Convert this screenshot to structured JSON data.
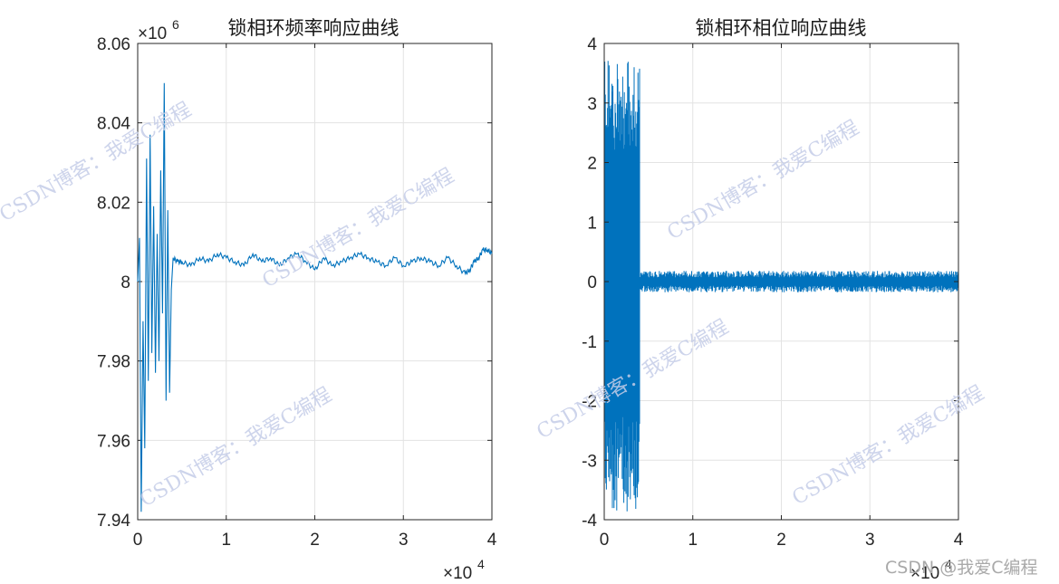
{
  "chart_data": [
    {
      "type": "line",
      "title": "锁相环频率响应曲线",
      "xlabel": "",
      "ylabel": "",
      "xlim": [
        0,
        40000
      ],
      "ylim": [
        7.94,
        8.06
      ],
      "x_ticks": [
        "0",
        "1",
        "2",
        "3",
        "4"
      ],
      "x_multiplier": "×10",
      "x_multiplier_exp": "4",
      "y_ticks": [
        "7.94",
        "7.96",
        "7.98",
        "8",
        "8.02",
        "8.04",
        "8.06"
      ],
      "y_multiplier": "×10",
      "y_multiplier_exp": "6",
      "grid": true,
      "line_color": "#0072BD",
      "series": [
        {
          "x": [
            0,
            200,
            400,
            600,
            800,
            1000,
            1200,
            1400,
            1600,
            1800,
            2000,
            2200,
            2400,
            2600,
            2800,
            3000,
            3200,
            3400,
            3600,
            3800,
            4000,
            4500,
            5000,
            6000,
            7000,
            8000,
            9000,
            10000,
            11000,
            12000,
            13000,
            14000,
            15000,
            16000,
            17000,
            18000,
            19000,
            20000,
            21000,
            22000,
            23000,
            24000,
            25000,
            26000,
            27000,
            28000,
            29000,
            30000,
            31000,
            32000,
            33000,
            34000,
            35000,
            36000,
            37000,
            37500,
            38000,
            38500,
            39000,
            39500,
            40000
          ],
          "values": [
            8.0,
            8.011,
            7.942,
            7.99,
            7.958,
            8.031,
            7.975,
            8.037,
            7.982,
            8.019,
            7.977,
            8.012,
            7.98,
            8.028,
            7.992,
            8.05,
            7.97,
            8.018,
            7.972,
            7.998,
            8.006,
            8.005,
            8.005,
            8.004,
            8.006,
            8.005,
            8.007,
            8.006,
            8.005,
            8.004,
            8.007,
            8.005,
            8.006,
            8.004,
            8.006,
            8.007,
            8.005,
            8.003,
            8.006,
            8.004,
            8.005,
            8.006,
            8.007,
            8.006,
            8.005,
            8.004,
            8.006,
            8.004,
            8.005,
            8.006,
            8.005,
            8.004,
            8.006,
            8.004,
            8.002,
            8.003,
            8.005,
            8.006,
            8.008,
            8.008,
            8.007
          ]
        }
      ]
    },
    {
      "type": "line",
      "title": "锁相环相位响应曲线",
      "xlabel": "",
      "ylabel": "",
      "xlim": [
        0,
        40000
      ],
      "ylim": [
        -4,
        4
      ],
      "x_ticks": [
        "0",
        "1",
        "2",
        "3",
        "4"
      ],
      "x_multiplier": "×10",
      "x_multiplier_exp": "4",
      "y_ticks": [
        "-4",
        "-3",
        "-2",
        "-1",
        "0",
        "1",
        "2",
        "3",
        "4"
      ],
      "grid": true,
      "line_color": "#0072BD",
      "series": [
        {
          "x": [
            0,
            4000,
            40000
          ],
          "envelope_upper": [
            3.75,
            3.75,
            0.18
          ],
          "envelope_lower": [
            -3.9,
            -3.9,
            -0.18
          ],
          "note_segments": [
            [
              0,
              4000,
              "high-amplitude oscillation"
            ],
            [
              4000,
              40000,
              "low-amplitude oscillation"
            ]
          ]
        }
      ]
    }
  ],
  "watermarks": {
    "repeated_text": "CSDN博客：我爱C编程",
    "corner_text": "CSDN @我爱C编程"
  }
}
